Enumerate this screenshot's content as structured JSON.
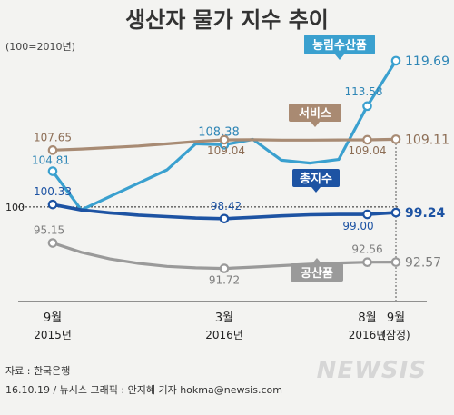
{
  "chart_data": {
    "type": "line",
    "title": "생산자 물가 지수 추이",
    "unit_note": "(100=2010년)",
    "x_ticks": [
      {
        "pos": 0,
        "line1": "9월",
        "line2": "2015년"
      },
      {
        "pos": 6,
        "line1": "3월",
        "line2": "2016년"
      },
      {
        "pos": 11,
        "line1": "8월",
        "line2": "2016년"
      },
      {
        "pos": 12,
        "line1": "9월",
        "line2": "(잠정)"
      }
    ],
    "baseline": {
      "value": 100,
      "label": "100"
    },
    "ylim": [
      88,
      122
    ],
    "series": [
      {
        "name": "농림수산품",
        "color": "#3aa0cf",
        "width": 3.2,
        "tag_color": "#3aa0cf",
        "values": [
          104.81,
          99.6,
          101.4,
          103.2,
          105.0,
          108.5,
          108.38,
          109.1,
          106.3,
          105.9,
          106.4,
          113.58,
          119.69
        ],
        "markers": [
          0,
          6,
          11,
          12
        ],
        "labels": [
          {
            "idx": 0,
            "text": "104.81",
            "dx": -2,
            "dy": -8,
            "anchor": "middle",
            "color": "#2f86b6",
            "size": 12
          },
          {
            "idx": 6,
            "text": "108.38",
            "dx": -6,
            "dy": -10,
            "anchor": "middle",
            "color": "#2f86b6",
            "size": 13
          },
          {
            "idx": 11,
            "text": "113.58",
            "dx": -4,
            "dy": -12,
            "anchor": "middle",
            "color": "#2f86b6",
            "size": 12
          },
          {
            "idx": 12,
            "text": "119.69",
            "dx": 10,
            "dy": 5,
            "anchor": "start",
            "color": "#2f86b6",
            "size": 14
          }
        ]
      },
      {
        "name": "서비스",
        "color": "#a88b74",
        "width": 3.2,
        "tag_color": "#a98a72",
        "values": [
          107.65,
          107.8,
          108.0,
          108.2,
          108.5,
          108.8,
          109.04,
          109.05,
          109.0,
          109.0,
          109.02,
          109.04,
          109.11
        ],
        "markers": [
          0,
          6,
          11,
          12
        ],
        "labels": [
          {
            "idx": 0,
            "text": "107.65",
            "dx": 0,
            "dy": -10,
            "anchor": "middle",
            "color": "#8c6d55",
            "size": 12
          },
          {
            "idx": 6,
            "text": "109.04",
            "dx": 2,
            "dy": 16,
            "anchor": "middle",
            "color": "#8c6d55",
            "size": 12
          },
          {
            "idx": 11,
            "text": "109.04",
            "dx": 0,
            "dy": 16,
            "anchor": "middle",
            "color": "#8c6d55",
            "size": 12
          },
          {
            "idx": 12,
            "text": "109.11",
            "dx": 10,
            "dy": 5,
            "anchor": "start",
            "color": "#8c6d55",
            "size": 14
          }
        ]
      },
      {
        "name": "총지수",
        "color": "#1d53a3",
        "width": 3.6,
        "tag_color": "#1d53a3",
        "values": [
          100.33,
          99.6,
          99.2,
          98.9,
          98.7,
          98.5,
          98.42,
          98.6,
          98.8,
          98.95,
          99.0,
          99.0,
          99.24
        ],
        "markers": [
          0,
          6,
          11,
          12
        ],
        "labels": [
          {
            "idx": 0,
            "text": "100.33",
            "dx": 0,
            "dy": -10,
            "anchor": "middle",
            "color": "#1d53a3",
            "size": 12
          },
          {
            "idx": 6,
            "text": "98.42",
            "dx": 2,
            "dy": -10,
            "anchor": "middle",
            "color": "#1d53a3",
            "size": 12
          },
          {
            "idx": 11,
            "text": "99.00",
            "dx": -10,
            "dy": 17,
            "anchor": "middle",
            "color": "#1d53a3",
            "size": 12
          },
          {
            "idx": 12,
            "text": "99.24",
            "dx": 10,
            "dy": 5,
            "anchor": "start",
            "color": "#1d53a3",
            "size": 14,
            "bold": true
          }
        ]
      },
      {
        "name": "공산품",
        "color": "#9a9a9a",
        "width": 3.2,
        "tag_color": "#9a9a9a",
        "values": [
          95.15,
          93.9,
          93.0,
          92.4,
          92.0,
          91.8,
          91.72,
          91.9,
          92.1,
          92.3,
          92.45,
          92.56,
          92.57
        ],
        "markers": [
          0,
          6,
          11,
          12
        ],
        "labels": [
          {
            "idx": 0,
            "text": "95.15",
            "dx": -4,
            "dy": -10,
            "anchor": "middle",
            "color": "#7d7d7d",
            "size": 12
          },
          {
            "idx": 6,
            "text": "91.72",
            "dx": 0,
            "dy": 17,
            "anchor": "middle",
            "color": "#7d7d7d",
            "size": 12
          },
          {
            "idx": 11,
            "text": "92.56",
            "dx": 0,
            "dy": -10,
            "anchor": "middle",
            "color": "#7d7d7d",
            "size": 12
          },
          {
            "idx": 12,
            "text": "92.57",
            "dx": 10,
            "dy": 5,
            "anchor": "start",
            "color": "#7d7d7d",
            "size": 14
          }
        ]
      }
    ]
  },
  "source": "자료 : 한국은행",
  "credit": "16.10.19 / 뉴시스 그래픽 : 안지혜 기자 hokma@newsis.com",
  "watermark": "NEWSIS"
}
